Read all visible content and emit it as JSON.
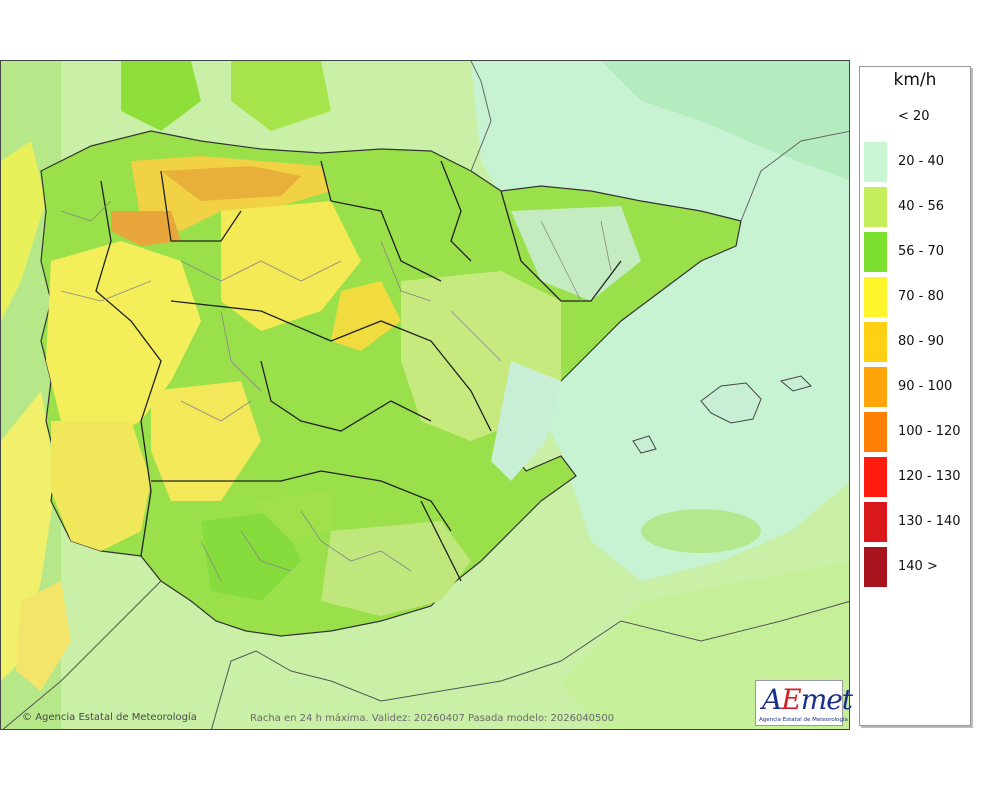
{
  "map": {
    "credit": "Agencia Estatal de Meteorología",
    "copyright_icon": "copyright-icon",
    "caption": "Racha en 24 h máxima. Validez: 20260407 Pasada modelo: 2026040500"
  },
  "logo": {
    "wordmark_prefix": "A",
    "wordmark_e": "E",
    "wordmark_suffix": "met",
    "subtitle": "Agencia Estatal de Meteorología"
  },
  "legend": {
    "unit": "km/h",
    "entries": [
      {
        "label": "< 20",
        "color": "#ffffff"
      },
      {
        "label": "20 - 40",
        "color": "#c9f5d3"
      },
      {
        "label": "40 - 56",
        "color": "#c5ee5d"
      },
      {
        "label": "56 - 70",
        "color": "#7ee02e"
      },
      {
        "label": "70 - 80",
        "color": "#fff52a"
      },
      {
        "label": "80 - 90",
        "color": "#ffd013"
      },
      {
        "label": "90 - 100",
        "color": "#ffa50a"
      },
      {
        "label": "100 - 120",
        "color": "#ff7f05"
      },
      {
        "label": "120 - 130",
        "color": "#ff1c0e"
      },
      {
        "label": "130 - 140",
        "color": "#d8181a"
      },
      {
        "label": "140 >",
        "color": "#a8141e"
      }
    ]
  }
}
